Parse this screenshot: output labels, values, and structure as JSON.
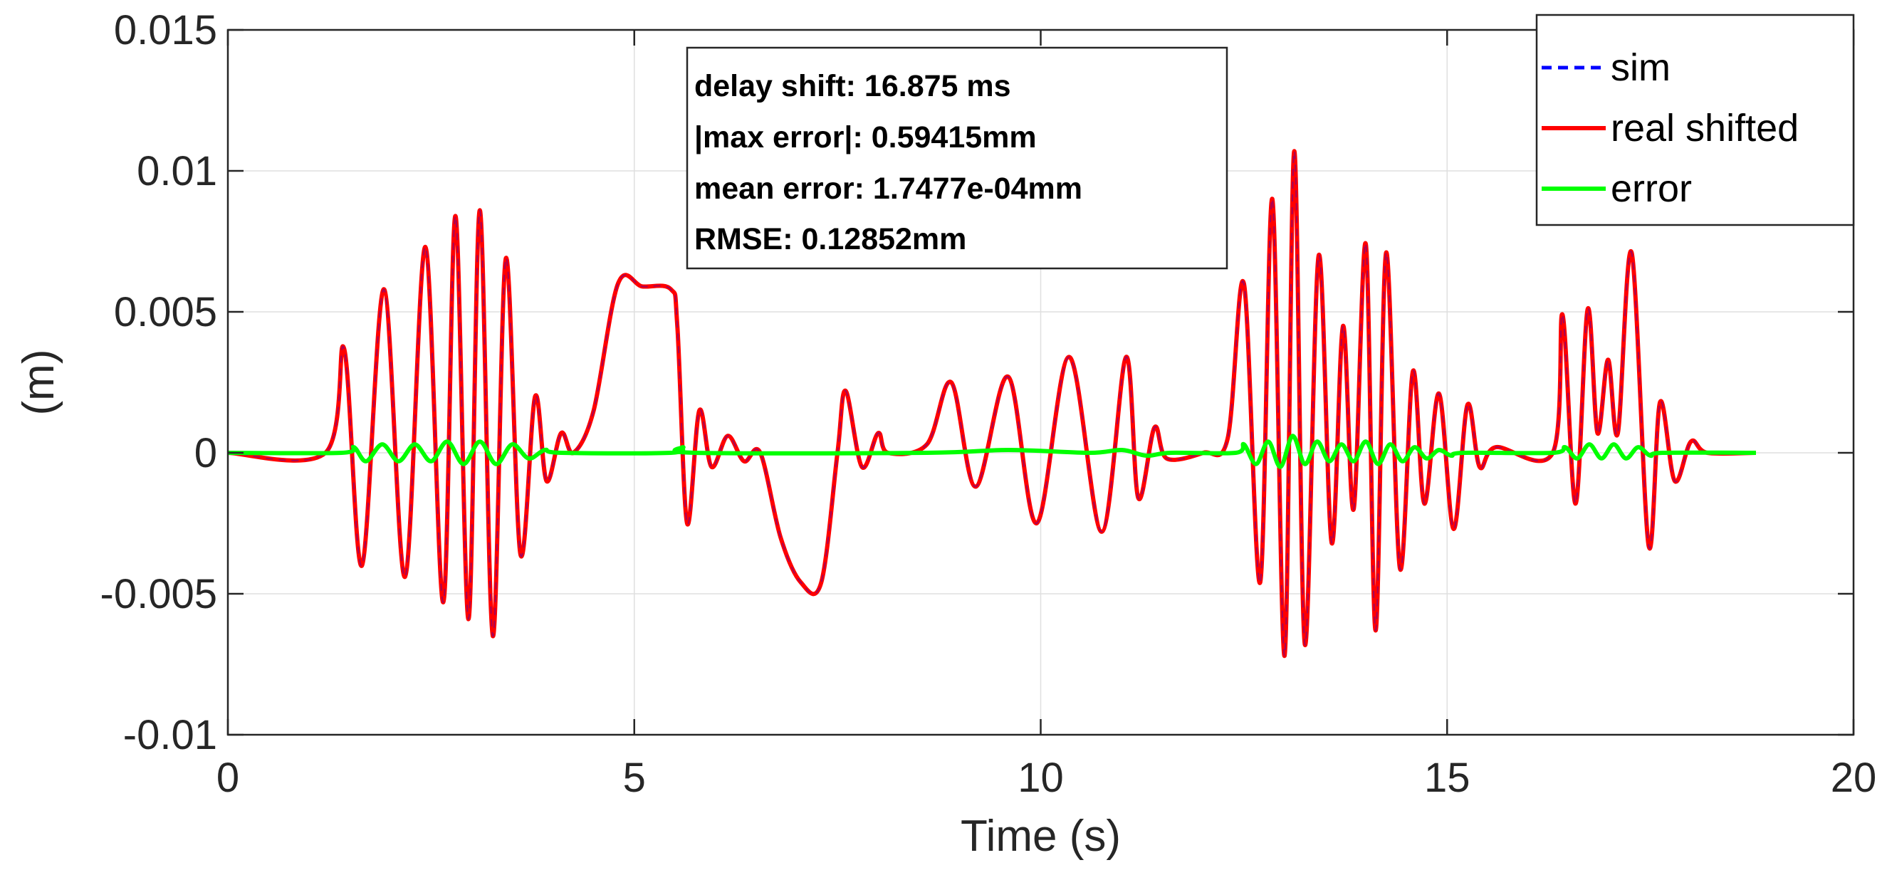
{
  "chart_data": {
    "type": "line",
    "xlabel": "Time (s)",
    "ylabel": "(m)",
    "xlim": [
      0,
      20
    ],
    "ylim": [
      -0.01,
      0.015
    ],
    "xticks": [
      0,
      5,
      10,
      15,
      20
    ],
    "xtick_labels": [
      "0",
      "5",
      "10",
      "15",
      "20"
    ],
    "yticks": [
      -0.01,
      -0.005,
      0,
      0.005,
      0.01,
      0.015
    ],
    "ytick_labels": [
      "-0.01",
      "-0.005",
      "0",
      "0.005",
      "0.01",
      "0.015"
    ],
    "grid": true,
    "legend_position": "top-right",
    "legend": [
      {
        "name": "sim",
        "color": "#0000ff",
        "style": "dashed"
      },
      {
        "name": "real shifted",
        "color": "#ff0000",
        "style": "solid"
      },
      {
        "name": "error",
        "color": "#00ff00",
        "style": "solid"
      }
    ],
    "annotation": [
      "delay shift: 16.875 ms",
      "|max error|: 0.59415mm",
      "mean error: 1.7477e-04mm",
      "RMSE: 0.12852mm"
    ],
    "series": [
      {
        "name": "real shifted",
        "color": "#ff0000",
        "points": [
          [
            0,
            0
          ],
          [
            1.2,
            0
          ],
          [
            1.43,
            0.0037
          ],
          [
            1.65,
            -0.004
          ],
          [
            1.92,
            0.0058
          ],
          [
            2.18,
            -0.0044
          ],
          [
            2.43,
            0.0073
          ],
          [
            2.65,
            -0.0053
          ],
          [
            2.8,
            0.0084
          ],
          [
            2.96,
            -0.0059
          ],
          [
            3.1,
            0.0086
          ],
          [
            3.26,
            -0.0065
          ],
          [
            3.42,
            0.0069
          ],
          [
            3.6,
            -0.0036
          ],
          [
            3.78,
            0.002
          ],
          [
            3.92,
            -0.001
          ],
          [
            4.1,
            0.0007
          ],
          [
            4.25,
            0
          ],
          [
            4.5,
            0.0015
          ],
          [
            4.8,
            0.006
          ],
          [
            5.1,
            0.0059
          ],
          [
            5.45,
            0.0058
          ],
          [
            5.53,
            0.0045
          ],
          [
            5.65,
            -0.0025
          ],
          [
            5.8,
            0.0015
          ],
          [
            5.95,
            -0.0005
          ],
          [
            6.15,
            0.0006
          ],
          [
            6.35,
            -0.0003
          ],
          [
            6.55,
            0
          ],
          [
            6.8,
            -0.003
          ],
          [
            7.05,
            -0.0046
          ],
          [
            7.3,
            -0.0046
          ],
          [
            7.5,
            0
          ],
          [
            7.6,
            0.0022
          ],
          [
            7.8,
            -0.0005
          ],
          [
            8.0,
            0.0007
          ],
          [
            8.12,
            0
          ],
          [
            8.6,
            0.0003
          ],
          [
            8.9,
            0.0025
          ],
          [
            9.2,
            -0.0012
          ],
          [
            9.6,
            0.0027
          ],
          [
            9.95,
            -0.0025
          ],
          [
            10.35,
            0.0034
          ],
          [
            10.75,
            -0.0028
          ],
          [
            11.05,
            0.0034
          ],
          [
            11.2,
            -0.0016
          ],
          [
            11.4,
            0.0009
          ],
          [
            11.55,
            -0.0002
          ],
          [
            12.0,
            0
          ],
          [
            12.3,
            0.0005
          ],
          [
            12.5,
            0.006
          ],
          [
            12.7,
            -0.0046
          ],
          [
            12.85,
            0.009
          ],
          [
            13.0,
            -0.0072
          ],
          [
            13.12,
            0.0107
          ],
          [
            13.25,
            -0.0068
          ],
          [
            13.42,
            0.007
          ],
          [
            13.58,
            -0.0032
          ],
          [
            13.72,
            0.0045
          ],
          [
            13.85,
            -0.002
          ],
          [
            14.0,
            0.0074
          ],
          [
            14.12,
            -0.0063
          ],
          [
            14.25,
            0.0071
          ],
          [
            14.42,
            -0.0041
          ],
          [
            14.58,
            0.0029
          ],
          [
            14.72,
            -0.0018
          ],
          [
            14.9,
            0.0021
          ],
          [
            15.08,
            -0.0027
          ],
          [
            15.25,
            0.0017
          ],
          [
            15.4,
            -0.0005
          ],
          [
            15.6,
            0.0002
          ],
          [
            16.3,
            0
          ],
          [
            16.42,
            0.0049
          ],
          [
            16.58,
            -0.0018
          ],
          [
            16.73,
            0.0051
          ],
          [
            16.85,
            0.0007
          ],
          [
            16.98,
            0.0033
          ],
          [
            17.1,
            0.0007
          ],
          [
            17.27,
            0.0071
          ],
          [
            17.48,
            -0.0033
          ],
          [
            17.62,
            0.0018
          ],
          [
            17.8,
            -0.001
          ],
          [
            18.0,
            0.0004
          ],
          [
            18.2,
            0
          ],
          [
            18.8,
            0
          ]
        ]
      },
      {
        "name": "error",
        "color": "#00ff00",
        "points": [
          [
            0,
            0
          ],
          [
            1.4,
            0
          ],
          [
            1.55,
            0.0002
          ],
          [
            1.7,
            -0.0003
          ],
          [
            1.9,
            0.0003
          ],
          [
            2.1,
            -0.0003
          ],
          [
            2.3,
            0.0003
          ],
          [
            2.5,
            -0.0003
          ],
          [
            2.7,
            0.0004
          ],
          [
            2.9,
            -0.0004
          ],
          [
            3.1,
            0.0004
          ],
          [
            3.3,
            -0.0004
          ],
          [
            3.5,
            0.0003
          ],
          [
            3.7,
            -0.0002
          ],
          [
            3.9,
            0.0001
          ],
          [
            4.1,
            0
          ],
          [
            5.45,
            0
          ],
          [
            5.6,
            0.0002
          ],
          [
            5.75,
            0
          ],
          [
            8.6,
            0
          ],
          [
            9.6,
            0.0001
          ],
          [
            10.6,
            0
          ],
          [
            11.0,
            0.0001
          ],
          [
            11.3,
            -0.0001
          ],
          [
            11.6,
            0
          ],
          [
            12.4,
            0
          ],
          [
            12.5,
            0.0003
          ],
          [
            12.65,
            -0.0004
          ],
          [
            12.8,
            0.0004
          ],
          [
            12.95,
            -0.0005
          ],
          [
            13.1,
            0.0006
          ],
          [
            13.25,
            -0.0004
          ],
          [
            13.4,
            0.0004
          ],
          [
            13.55,
            -0.0003
          ],
          [
            13.7,
            0.0003
          ],
          [
            13.85,
            -0.0003
          ],
          [
            14.0,
            0.0004
          ],
          [
            14.15,
            -0.0004
          ],
          [
            14.3,
            0.0003
          ],
          [
            14.45,
            -0.0003
          ],
          [
            14.6,
            0.0002
          ],
          [
            14.75,
            -0.0002
          ],
          [
            14.9,
            0.0001
          ],
          [
            15.05,
            -0.0001
          ],
          [
            15.2,
            0
          ],
          [
            16.3,
            0
          ],
          [
            16.45,
            0.0002
          ],
          [
            16.6,
            -0.0002
          ],
          [
            16.75,
            0.0003
          ],
          [
            16.9,
            -0.0002
          ],
          [
            17.05,
            0.0003
          ],
          [
            17.2,
            -0.0002
          ],
          [
            17.35,
            0.0002
          ],
          [
            17.5,
            -0.0001
          ],
          [
            17.65,
            0
          ],
          [
            18.8,
            0
          ]
        ]
      }
    ]
  }
}
